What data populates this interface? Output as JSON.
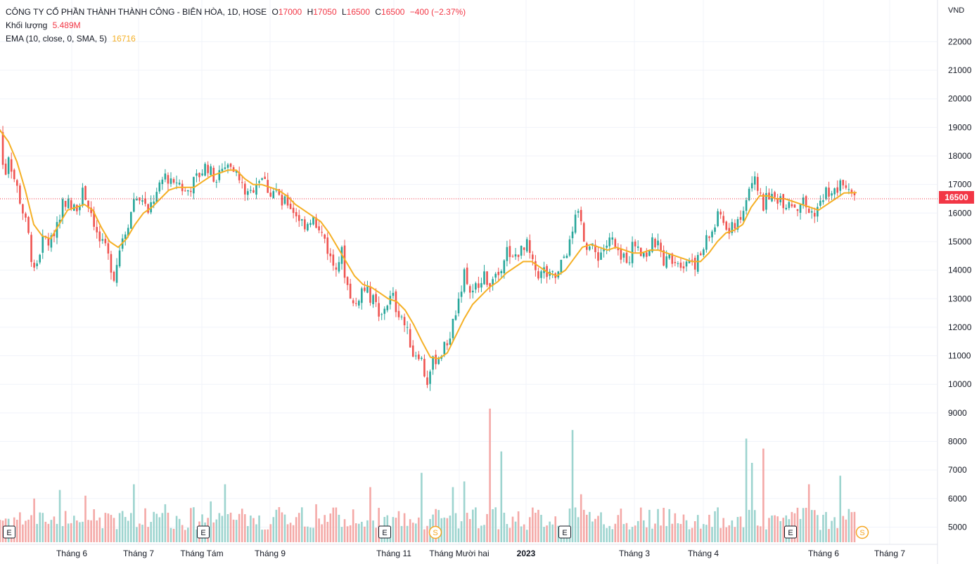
{
  "legend": {
    "symbol_line": "CÔNG TY CỔ PHẦN THÀNH THÀNH CÔNG - BIÊN HÒA, 1D, HOSE",
    "o_label": "O",
    "o_value": "17000",
    "h_label": "H",
    "h_value": "17050",
    "l_label": "L",
    "l_value": "16500",
    "c_label": "C",
    "c_value": "16500",
    "change": "−400 (−2.37%)",
    "volume_label": "Khối lượng",
    "volume_value": "5.489M",
    "ema_label": "EMA (10, close, 0, SMA, 5)",
    "ema_value": "16716"
  },
  "currency": "VND",
  "last_price_tag": "16500",
  "colors": {
    "up": "#26a69a",
    "down": "#ef5350",
    "vol_up": "#9dd4cf",
    "vol_down": "#f4a9a7",
    "ema": "#f5b025",
    "grid": "#f0f3fa",
    "price_line": "#f23645"
  },
  "chart_data": {
    "type": "candlestick",
    "series": [
      {
        "name": "price"
      },
      {
        "name": "EMA (10, close, 0, SMA, 5)"
      },
      {
        "name": "Khối lượng"
      }
    ],
    "y_ticks": [
      22000,
      21000,
      20000,
      19000,
      18000,
      17000,
      16000,
      15000,
      14000,
      13000,
      12000,
      11000,
      10000,
      9000,
      8000,
      7000,
      6000,
      5000
    ],
    "ylim": [
      4600,
      22600
    ],
    "x_ticks": [
      "Tháng 6",
      "Tháng 7",
      "Tháng Tám",
      "Tháng 9",
      "Tháng 11",
      "Tháng Mười hai",
      "2023",
      "Tháng 3",
      "Tháng 4",
      "Tháng 6",
      "Tháng 7"
    ],
    "event_markers": [
      "E",
      "E",
      "E",
      "E",
      "E",
      "S",
      "S"
    ],
    "close_path": [
      [
        0,
        18900
      ],
      [
        6,
        17100
      ],
      [
        12,
        18100
      ],
      [
        18,
        17400
      ],
      [
        24,
        16900
      ],
      [
        30,
        16300
      ],
      [
        36,
        15700
      ],
      [
        42,
        15000
      ],
      [
        48,
        13800
      ],
      [
        54,
        14400
      ],
      [
        60,
        15000
      ],
      [
        66,
        15100
      ],
      [
        72,
        14900
      ],
      [
        78,
        15500
      ],
      [
        84,
        15900
      ],
      [
        90,
        16500
      ],
      [
        96,
        16400
      ],
      [
        102,
        16100
      ],
      [
        108,
        16200
      ],
      [
        114,
        16500
      ],
      [
        120,
        16800
      ],
      [
        126,
        16300
      ],
      [
        132,
        15900
      ],
      [
        138,
        15200
      ],
      [
        144,
        14900
      ],
      [
        150,
        14700
      ],
      [
        156,
        14300
      ],
      [
        162,
        13800
      ],
      [
        168,
        14500
      ],
      [
        174,
        15200
      ],
      [
        180,
        15500
      ],
      [
        186,
        16000
      ],
      [
        192,
        16700
      ],
      [
        198,
        16300
      ],
      [
        204,
        16600
      ],
      [
        210,
        15800
      ],
      [
        216,
        16400
      ],
      [
        222,
        16600
      ],
      [
        228,
        16900
      ],
      [
        234,
        17400
      ],
      [
        240,
        17200
      ],
      [
        246,
        16800
      ],
      [
        252,
        17200
      ],
      [
        258,
        16900
      ],
      [
        264,
        16700
      ],
      [
        270,
        16900
      ],
      [
        276,
        17100
      ],
      [
        282,
        17300
      ],
      [
        288,
        17500
      ],
      [
        294,
        17700
      ],
      [
        300,
        17400
      ],
      [
        306,
        17200
      ],
      [
        312,
        17500
      ],
      [
        318,
        17600
      ],
      [
        324,
        17700
      ],
      [
        330,
        17800
      ],
      [
        336,
        17400
      ],
      [
        342,
        17000
      ],
      [
        348,
        16800
      ],
      [
        354,
        16500
      ],
      [
        360,
        16900
      ],
      [
        366,
        17200
      ],
      [
        372,
        17300
      ],
      [
        378,
        17000
      ],
      [
        384,
        16700
      ],
      [
        390,
        16800
      ],
      [
        396,
        16600
      ],
      [
        402,
        16300
      ],
      [
        408,
        16400
      ],
      [
        414,
        16200
      ],
      [
        420,
        16000
      ],
      [
        426,
        15800
      ],
      [
        432,
        15600
      ],
      [
        438,
        15700
      ],
      [
        444,
        15900
      ],
      [
        450,
        15400
      ],
      [
        456,
        15300
      ],
      [
        462,
        15100
      ],
      [
        468,
        14500
      ],
      [
        474,
        14200
      ],
      [
        480,
        14300
      ],
      [
        486,
        14600
      ],
      [
        492,
        13600
      ],
      [
        498,
        13200
      ],
      [
        504,
        12600
      ],
      [
        510,
        13100
      ],
      [
        516,
        13400
      ],
      [
        522,
        13200
      ],
      [
        528,
        13000
      ],
      [
        534,
        12800
      ],
      [
        540,
        12100
      ],
      [
        546,
        12700
      ],
      [
        552,
        12900
      ],
      [
        558,
        13100
      ],
      [
        564,
        12600
      ],
      [
        570,
        12500
      ],
      [
        576,
        12000
      ],
      [
        582,
        11600
      ],
      [
        588,
        11000
      ],
      [
        594,
        11200
      ],
      [
        600,
        10800
      ],
      [
        606,
        10000
      ],
      [
        612,
        10500
      ],
      [
        618,
        10900
      ],
      [
        624,
        11000
      ],
      [
        630,
        11200
      ],
      [
        636,
        11500
      ],
      [
        642,
        11900
      ],
      [
        648,
        12600
      ],
      [
        654,
        13200
      ],
      [
        660,
        13900
      ],
      [
        666,
        13400
      ],
      [
        672,
        13100
      ],
      [
        678,
        13500
      ],
      [
        684,
        13800
      ],
      [
        690,
        13700
      ],
      [
        696,
        13600
      ],
      [
        702,
        13900
      ],
      [
        708,
        13800
      ],
      [
        714,
        14300
      ],
      [
        720,
        14800
      ],
      [
        726,
        14200
      ],
      [
        732,
        14500
      ],
      [
        738,
        14700
      ],
      [
        744,
        14600
      ],
      [
        750,
        14900
      ],
      [
        756,
        14200
      ],
      [
        762,
        14000
      ],
      [
        768,
        13800
      ],
      [
        774,
        14000
      ],
      [
        780,
        13700
      ],
      [
        786,
        13800
      ],
      [
        792,
        13700
      ],
      [
        798,
        14200
      ],
      [
        804,
        14600
      ],
      [
        810,
        14900
      ],
      [
        816,
        15500
      ],
      [
        822,
        16100
      ],
      [
        828,
        15400
      ],
      [
        834,
        14900
      ],
      [
        840,
        14800
      ],
      [
        846,
        14600
      ],
      [
        852,
        14500
      ],
      [
        858,
        14800
      ],
      [
        864,
        14900
      ],
      [
        870,
        15100
      ],
      [
        876,
        14600
      ],
      [
        882,
        14300
      ],
      [
        888,
        14500
      ],
      [
        894,
        14400
      ],
      [
        900,
        14900
      ],
      [
        906,
        15000
      ],
      [
        912,
        14700
      ],
      [
        918,
        14500
      ],
      [
        924,
        14800
      ],
      [
        930,
        15000
      ],
      [
        936,
        14800
      ],
      [
        942,
        14400
      ],
      [
        948,
        14300
      ],
      [
        954,
        14500
      ],
      [
        960,
        14400
      ],
      [
        966,
        14300
      ],
      [
        972,
        14300
      ],
      [
        978,
        14400
      ],
      [
        984,
        14400
      ],
      [
        990,
        14200
      ],
      [
        996,
        14500
      ],
      [
        1002,
        14900
      ],
      [
        1008,
        15200
      ],
      [
        1014,
        15400
      ],
      [
        1020,
        15800
      ],
      [
        1026,
        16000
      ],
      [
        1032,
        15400
      ],
      [
        1038,
        15300
      ],
      [
        1044,
        15600
      ],
      [
        1050,
        15900
      ],
      [
        1056,
        15800
      ],
      [
        1062,
        16600
      ],
      [
        1068,
        17300
      ],
      [
        1074,
        17000
      ],
      [
        1080,
        16800
      ],
      [
        1086,
        16200
      ],
      [
        1092,
        16700
      ],
      [
        1098,
        16500
      ],
      [
        1104,
        16500
      ],
      [
        1110,
        16600
      ],
      [
        1116,
        16300
      ],
      [
        1122,
        16500
      ],
      [
        1128,
        16300
      ],
      [
        1134,
        16200
      ],
      [
        1140,
        16500
      ],
      [
        1146,
        16200
      ],
      [
        1152,
        16000
      ],
      [
        1158,
        15900
      ],
      [
        1164,
        16300
      ],
      [
        1170,
        16600
      ],
      [
        1176,
        16800
      ],
      [
        1182,
        16800
      ],
      [
        1188,
        16700
      ],
      [
        1194,
        16900
      ],
      [
        1200,
        17200
      ],
      [
        1206,
        17000
      ],
      [
        1212,
        16900
      ],
      [
        1218,
        16500
      ]
    ],
    "ema_path": [
      [
        0,
        18900
      ],
      [
        12,
        18500
      ],
      [
        24,
        17800
      ],
      [
        36,
        16800
      ],
      [
        48,
        15600
      ],
      [
        60,
        15200
      ],
      [
        72,
        15100
      ],
      [
        84,
        15600
      ],
      [
        96,
        16100
      ],
      [
        108,
        16200
      ],
      [
        120,
        16300
      ],
      [
        132,
        16100
      ],
      [
        144,
        15500
      ],
      [
        156,
        15000
      ],
      [
        168,
        14800
      ],
      [
        180,
        15100
      ],
      [
        192,
        15600
      ],
      [
        204,
        16000
      ],
      [
        216,
        16200
      ],
      [
        228,
        16500
      ],
      [
        240,
        16800
      ],
      [
        252,
        16900
      ],
      [
        264,
        16900
      ],
      [
        276,
        16900
      ],
      [
        288,
        17100
      ],
      [
        300,
        17300
      ],
      [
        312,
        17400
      ],
      [
        324,
        17500
      ],
      [
        336,
        17500
      ],
      [
        348,
        17200
      ],
      [
        360,
        17000
      ],
      [
        372,
        17000
      ],
      [
        384,
        16900
      ],
      [
        396,
        16800
      ],
      [
        408,
        16600
      ],
      [
        420,
        16300
      ],
      [
        432,
        16100
      ],
      [
        444,
        15900
      ],
      [
        456,
        15700
      ],
      [
        468,
        15300
      ],
      [
        480,
        14800
      ],
      [
        492,
        14300
      ],
      [
        504,
        13800
      ],
      [
        516,
        13500
      ],
      [
        528,
        13400
      ],
      [
        540,
        13200
      ],
      [
        552,
        13000
      ],
      [
        564,
        12900
      ],
      [
        576,
        12600
      ],
      [
        588,
        12100
      ],
      [
        600,
        11500
      ],
      [
        612,
        10950
      ],
      [
        624,
        10900
      ],
      [
        636,
        11100
      ],
      [
        648,
        11700
      ],
      [
        660,
        12300
      ],
      [
        672,
        12800
      ],
      [
        684,
        13100
      ],
      [
        696,
        13400
      ],
      [
        708,
        13600
      ],
      [
        720,
        13900
      ],
      [
        732,
        14100
      ],
      [
        744,
        14300
      ],
      [
        756,
        14300
      ],
      [
        768,
        14100
      ],
      [
        780,
        13900
      ],
      [
        792,
        13800
      ],
      [
        804,
        14000
      ],
      [
        816,
        14400
      ],
      [
        828,
        14800
      ],
      [
        840,
        14900
      ],
      [
        852,
        14800
      ],
      [
        864,
        14700
      ],
      [
        876,
        14800
      ],
      [
        888,
        14700
      ],
      [
        900,
        14600
      ],
      [
        912,
        14600
      ],
      [
        924,
        14700
      ],
      [
        936,
        14700
      ],
      [
        948,
        14600
      ],
      [
        960,
        14500
      ],
      [
        972,
        14400
      ],
      [
        984,
        14300
      ],
      [
        996,
        14300
      ],
      [
        1008,
        14600
      ],
      [
        1020,
        15000
      ],
      [
        1032,
        15300
      ],
      [
        1044,
        15400
      ],
      [
        1056,
        15600
      ],
      [
        1068,
        16200
      ],
      [
        1080,
        16600
      ],
      [
        1092,
        16600
      ],
      [
        1104,
        16500
      ],
      [
        1116,
        16500
      ],
      [
        1128,
        16400
      ],
      [
        1140,
        16300
      ],
      [
        1152,
        16200
      ],
      [
        1164,
        16100
      ],
      [
        1176,
        16300
      ],
      [
        1188,
        16500
      ],
      [
        1200,
        16700
      ],
      [
        1218,
        16716
      ]
    ],
    "volume_events": [
      [
        48,
        6000
      ],
      [
        84,
        6300
      ],
      [
        120,
        6100
      ],
      [
        192,
        6500
      ],
      [
        234,
        5800
      ],
      [
        300,
        5900
      ],
      [
        318,
        6500
      ],
      [
        396,
        5700
      ],
      [
        450,
        5800
      ],
      [
        528,
        6400
      ],
      [
        600,
        6900
      ],
      [
        642,
        6400
      ],
      [
        660,
        6600
      ],
      [
        696,
        9150
      ],
      [
        714,
        7650
      ],
      [
        816,
        8400
      ],
      [
        828,
        6150
      ],
      [
        1062,
        8100
      ],
      [
        1068,
        7250
      ],
      [
        1086,
        7750
      ],
      [
        1152,
        6500
      ],
      [
        1194,
        6800
      ],
      [
        1218,
        6300
      ]
    ],
    "last_close": 16500
  }
}
